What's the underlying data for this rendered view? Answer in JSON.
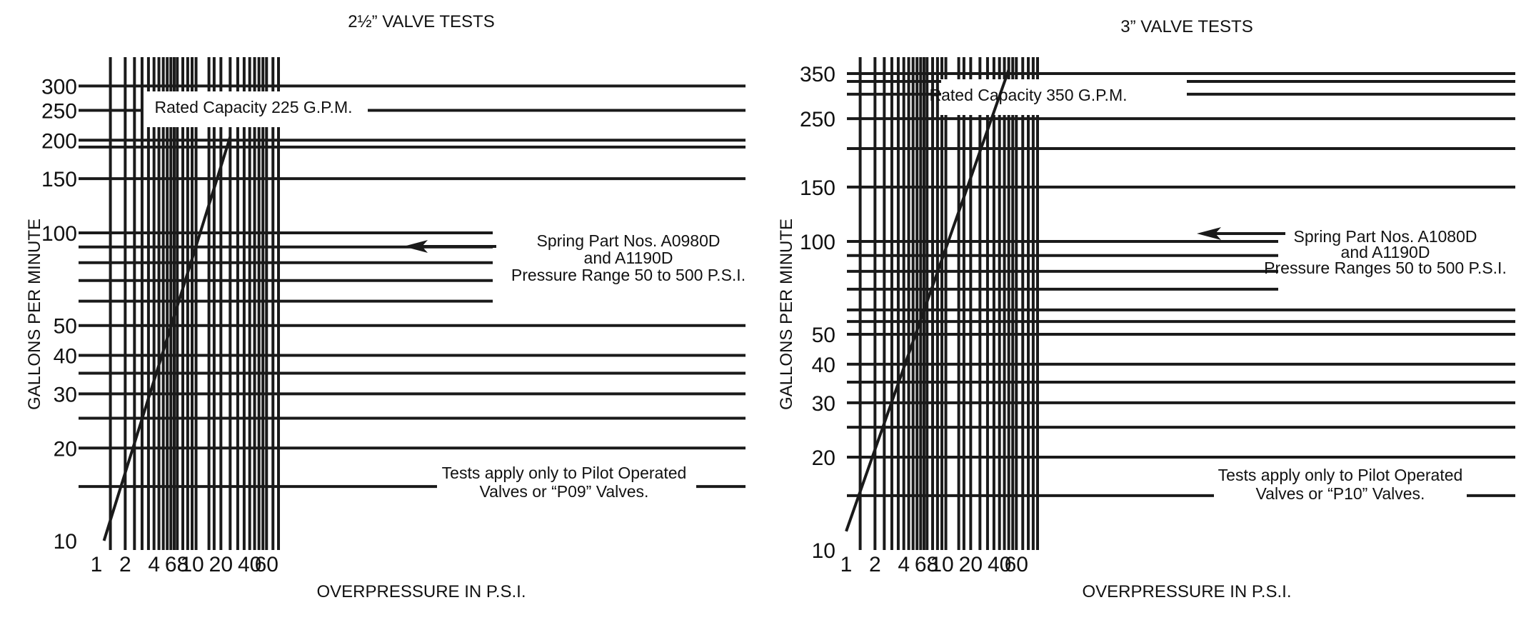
{
  "chart_data": [
    {
      "type": "line",
      "title": "2½” VALVE TESTS",
      "xlabel": "OVERPRESSURE IN P.S.I.",
      "ylabel": "GALLONS PER MINUTE",
      "x_scale": "log",
      "y_scale": "log",
      "xlim": [
        1,
        100
      ],
      "ylim": [
        10,
        350
      ],
      "x_ticks": [
        "1",
        "2",
        "4",
        "6",
        "8",
        "10",
        "20",
        "40",
        "60"
      ],
      "y_ticks": [
        "10",
        "20",
        "30",
        "40",
        "50",
        "100",
        "150",
        "200",
        "250",
        "300"
      ],
      "series": [
        {
          "x": [
            1.2,
            25
          ],
          "y": [
            10,
            205
          ]
        }
      ],
      "annotations": {
        "rated": "Rated Capacity 225 G.P.M.",
        "spring_lines": [
          "Spring Part Nos. A0980D",
          "and A1190D",
          "Pressure Range 50 to 500 P.S.I."
        ],
        "tests_lines": [
          "Tests apply only to Pilot Operated",
          "Valves or “P09” Valves."
        ]
      },
      "grid": true
    },
    {
      "type": "line",
      "title": "3” VALVE TESTS",
      "xlabel": "OVERPRESSURE IN P.S.I.",
      "ylabel": "GALLONS PER MINUTE",
      "x_scale": "log",
      "y_scale": "log",
      "xlim": [
        1,
        100
      ],
      "ylim": [
        10,
        360
      ],
      "x_ticks": [
        "1",
        "2",
        "4",
        "6",
        "8",
        "10",
        "20",
        "40",
        "60"
      ],
      "y_ticks": [
        "10",
        "20",
        "30",
        "40",
        "50",
        "100",
        "150",
        "250",
        "350"
      ],
      "series": [
        {
          "x": [
            1.0,
            50
          ],
          "y": [
            11.5,
            360
          ]
        }
      ],
      "annotations": {
        "rated": "Rated Capacity 350 G.P.M.",
        "spring_lines": [
          "Spring Part Nos. A1080D",
          "and A1190D",
          "Pressure Ranges 50 to 500 P.S.I."
        ],
        "tests_lines": [
          "Tests apply only to Pilot Operated",
          "Valves or “P10” Valves."
        ]
      },
      "grid": true
    }
  ]
}
